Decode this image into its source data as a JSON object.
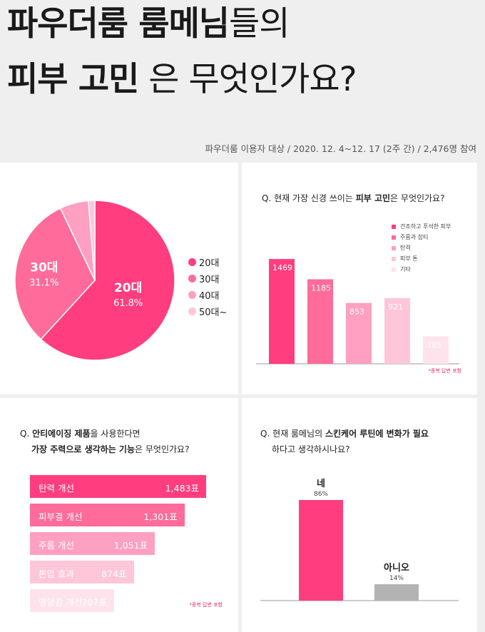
{
  "header": {
    "title_line1_bold": "파우더룸 룸메님",
    "title_line1_light": "들의",
    "title_line2_bold": "피부 고민",
    "title_line2_light": "은 무엇인가요?",
    "source": "파우더룸 이용자 대상 / 2020. 12. 4~12. 17 (2주 간) / 2,476명 참여"
  },
  "colors": {
    "c1": "#ff3d7f",
    "c2": "#ff6b9a",
    "c3": "#ff9fc2",
    "c4": "#ffc6da",
    "c5": "#ffe3ec",
    "gray": "#b3b3b3"
  },
  "chart_data": [
    {
      "type": "pie",
      "slices": [
        {
          "label": "20대",
          "value": 61.8,
          "value_text": "61.8%"
        },
        {
          "label": "30대",
          "value": 31.1,
          "value_text": "31.1%"
        },
        {
          "label": "40대",
          "value": 5.8
        },
        {
          "label": "50대~",
          "value": 1.3
        }
      ],
      "legend": [
        "20대",
        "30대",
        "40대",
        "50대~"
      ],
      "legend_position": "right"
    },
    {
      "type": "bar",
      "title_parts": {
        "pre": "Q. 현재 가장 신경 쓰이는 ",
        "bold": "피부 고민",
        "post": "은 무엇인가요?"
      },
      "categories": [
        "건조하고 푸석한 피부",
        "주름과 잡티",
        "탄력",
        "피부 톤",
        "기타"
      ],
      "values": [
        1469,
        1185,
        853,
        921,
        385
      ],
      "ylim": [
        0,
        1700
      ],
      "legend_position": "top-right",
      "note": "*중복 답변 포함"
    },
    {
      "type": "bar",
      "orientation": "horizontal",
      "title_parts": {
        "line1_pre": "Q. ",
        "line1_bold": "안티에이징 제품",
        "line1_post": "을 사용한다면",
        "line2_bold": "가장 주력으로 생각하는 기능",
        "line2_post": "은 무엇인가요?"
      },
      "categories": [
        "탄력 개선",
        "피부결 개선",
        "주름 개선",
        "톤업 효과",
        "영양감 개선"
      ],
      "values": [
        1483,
        1301,
        1051,
        874,
        707
      ],
      "value_labels": [
        "1,483표",
        "1,301표",
        "1,051표",
        "874표",
        "707표"
      ],
      "note": "*중복 답변 포함"
    },
    {
      "type": "bar",
      "title_parts": {
        "line1_pre": "Q. 현재 룸메님의 ",
        "line1_bold": "스킨케어 루틴에 변화가 필요",
        "line2": "하다고 생각하시나요?"
      },
      "categories": [
        "네",
        "아니오"
      ],
      "values": [
        86,
        14
      ],
      "value_labels": [
        "86%",
        "14%"
      ],
      "ylim": [
        0,
        100
      ]
    }
  ]
}
